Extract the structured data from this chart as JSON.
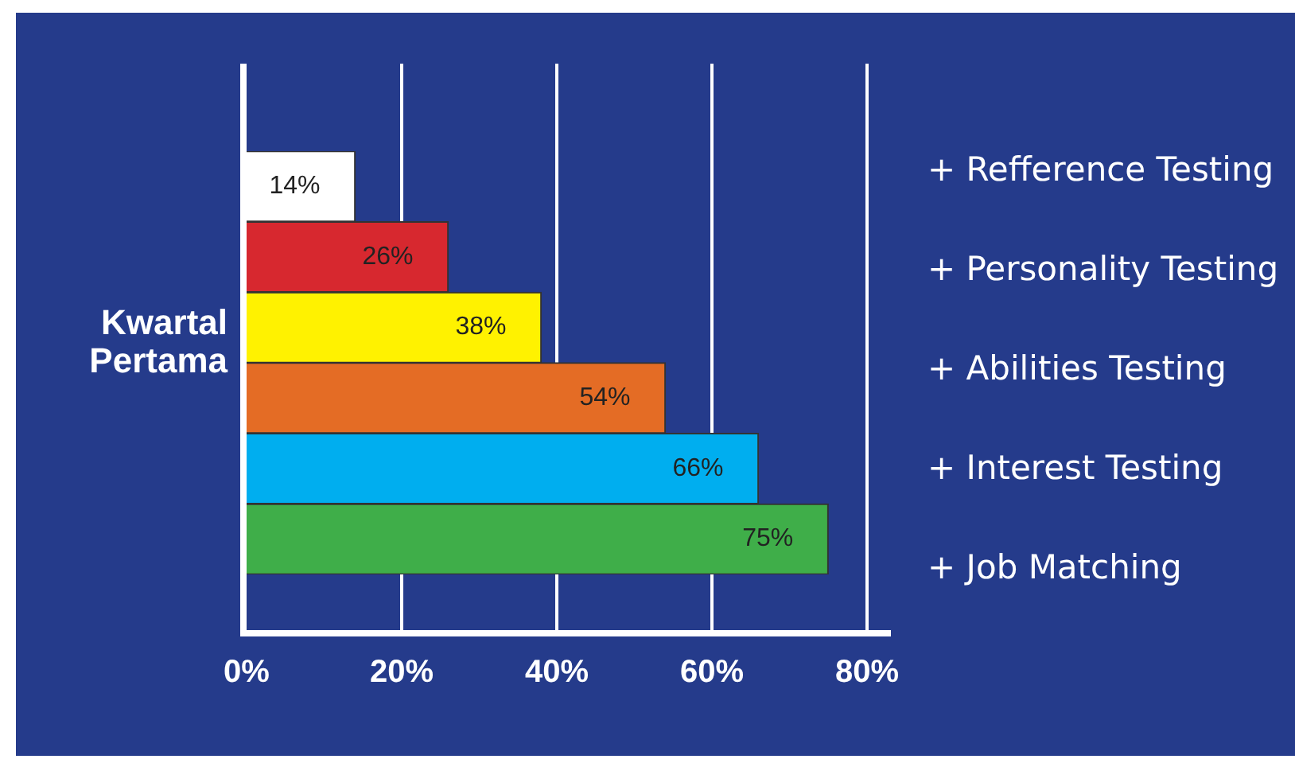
{
  "chart_data": {
    "type": "bar",
    "orientation": "horizontal",
    "ylabel": "Kwartal Pertama",
    "categories": [
      null,
      null,
      null,
      null,
      null,
      null
    ],
    "annotations": [
      "+ Refference Testing",
      "+ Personality Testing",
      "+ Abilities Testing",
      "+ Interest Testing",
      "+ Job Matching"
    ],
    "values": [
      14,
      26,
      38,
      54,
      66,
      75
    ],
    "colors": [
      "#ffffff",
      "#d7282f",
      "#fff200",
      "#e46c25",
      "#00aeef",
      "#3fae49"
    ],
    "value_labels": [
      "14%",
      "26%",
      "38%",
      "54%",
      "66%",
      "75%"
    ],
    "xlim": [
      0,
      80
    ],
    "xticks": [
      {
        "value": 0,
        "label": "0%"
      },
      {
        "value": 20,
        "label": "20%"
      },
      {
        "value": 40,
        "label": "40%"
      },
      {
        "value": 60,
        "label": "60%"
      },
      {
        "value": 80,
        "label": "80%"
      }
    ],
    "grid": "x",
    "legend": false
  }
}
